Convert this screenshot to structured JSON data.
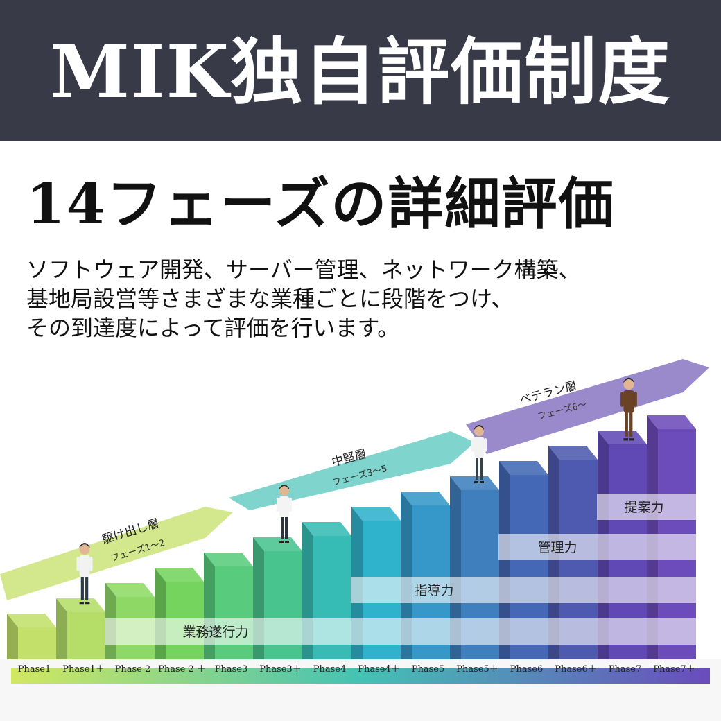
{
  "header": {
    "title": "MIK独自評価制度"
  },
  "subtitle": "14フェーズの詳細評価",
  "description": [
    "ソフトウェア開発、サーバー管理、ネットワーク構築、",
    "基地局設営等さまざまな業種ごとに段階をつけ、",
    "その到達度によって評価を行います。"
  ],
  "phases": [
    {
      "label": "Phase1",
      "level": 1,
      "color": "#c2e06a"
    },
    {
      "label": "Phase1＋",
      "level": 2,
      "color": "#b4de68"
    },
    {
      "label": "Phase 2",
      "level": 3,
      "color": "#8ed966"
    },
    {
      "label": "Phase 2 ＋",
      "level": 4,
      "color": "#74d45e"
    },
    {
      "label": "Phase3",
      "level": 5,
      "color": "#58cc7c"
    },
    {
      "label": "Phase3＋",
      "level": 6,
      "color": "#48c48e"
    },
    {
      "label": "Phase4",
      "level": 7,
      "color": "#36bcb4"
    },
    {
      "label": "Phase4＋",
      "level": 8,
      "color": "#2fb2cc"
    },
    {
      "label": "Phase5",
      "level": 9,
      "color": "#3598c8"
    },
    {
      "label": "Phase5＋",
      "level": 10,
      "color": "#3f7fbe"
    },
    {
      "label": "Phase6",
      "level": 11,
      "color": "#4468b5"
    },
    {
      "label": "Phase6＋",
      "level": 12,
      "color": "#4e5ab0"
    },
    {
      "label": "Phase7",
      "level": 13,
      "color": "#6049b5"
    },
    {
      "label": "Phase7＋",
      "level": 14,
      "color": "#6c4cba"
    }
  ],
  "tiers": [
    {
      "name": "駆け出し層",
      "phases": "フェーズ1～2",
      "color": "#d3e88c"
    },
    {
      "name": "中堅層",
      "phases": "フェーズ3～5",
      "color": "#7fd4cd"
    },
    {
      "name": "ベテラン層",
      "phases": "フェーズ6～",
      "color": "#9a8acb"
    }
  ],
  "skills": [
    {
      "label": "業務遂行力",
      "from_phase": 2
    },
    {
      "label": "指導力",
      "from_phase": 7
    },
    {
      "label": "管理力",
      "from_phase": 10
    },
    {
      "label": "提案力",
      "from_phase": 12
    }
  ]
}
